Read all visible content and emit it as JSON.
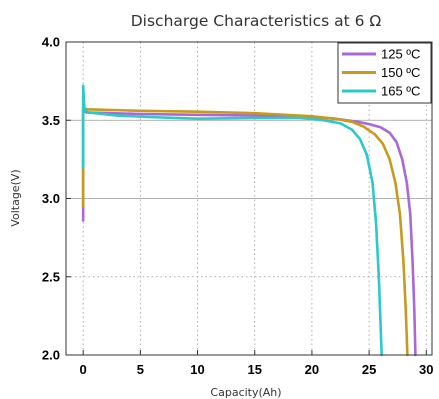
{
  "chart_data": {
    "type": "line",
    "title": "Discharge Characteristics at 6 Ω",
    "xlabel": "Capacity(Ah)",
    "ylabel": "Voltage(V)",
    "xlim": [
      -1.5,
      30.5
    ],
    "ylim": [
      2.0,
      4.0
    ],
    "x_ticks": [
      0,
      5,
      10,
      15,
      20,
      25,
      30
    ],
    "y_ticks": [
      2.0,
      2.5,
      3.0,
      3.5,
      4.0
    ],
    "x_tick_labels": [
      "0",
      "5",
      "10",
      "15",
      "20",
      "25",
      "30"
    ],
    "y_tick_labels": [
      "2.0",
      "2.5",
      "3.0",
      "3.5",
      "4.0"
    ],
    "grid": "dotted",
    "legend_position": "top-right",
    "series": [
      {
        "name": "125 ºC",
        "color": "#a968d6",
        "points": [
          [
            0.0,
            2.86
          ],
          [
            0.0,
            3.56
          ],
          [
            0.3,
            3.55
          ],
          [
            5,
            3.54
          ],
          [
            10,
            3.535
          ],
          [
            15,
            3.53
          ],
          [
            20,
            3.52
          ],
          [
            22,
            3.51
          ],
          [
            24,
            3.49
          ],
          [
            25,
            3.475
          ],
          [
            26,
            3.455
          ],
          [
            26.8,
            3.42
          ],
          [
            27.4,
            3.36
          ],
          [
            27.9,
            3.25
          ],
          [
            28.3,
            3.1
          ],
          [
            28.6,
            2.9
          ],
          [
            28.8,
            2.6
          ],
          [
            28.95,
            2.3
          ],
          [
            29.05,
            2.0
          ]
        ]
      },
      {
        "name": "150 ºC",
        "color": "#c79a1d",
        "points": [
          [
            0.0,
            2.95
          ],
          [
            0.0,
            3.58
          ],
          [
            0.3,
            3.57
          ],
          [
            5,
            3.56
          ],
          [
            10,
            3.555
          ],
          [
            15,
            3.545
          ],
          [
            20,
            3.525
          ],
          [
            22,
            3.51
          ],
          [
            23.5,
            3.49
          ],
          [
            24.5,
            3.46
          ],
          [
            25.5,
            3.41
          ],
          [
            26.2,
            3.35
          ],
          [
            26.8,
            3.25
          ],
          [
            27.3,
            3.1
          ],
          [
            27.7,
            2.9
          ],
          [
            28.0,
            2.6
          ],
          [
            28.2,
            2.3
          ],
          [
            28.35,
            2.0
          ]
        ]
      },
      {
        "name": "165 ºC",
        "color": "#2ec8c8",
        "points": [
          [
            0.0,
            3.2
          ],
          [
            0.0,
            3.72
          ],
          [
            0.1,
            3.58
          ],
          [
            0.4,
            3.55
          ],
          [
            3,
            3.53
          ],
          [
            6,
            3.52
          ],
          [
            10,
            3.51
          ],
          [
            15,
            3.515
          ],
          [
            19,
            3.515
          ],
          [
            21,
            3.5
          ],
          [
            22.5,
            3.48
          ],
          [
            23.5,
            3.44
          ],
          [
            24.2,
            3.38
          ],
          [
            24.8,
            3.28
          ],
          [
            25.3,
            3.1
          ],
          [
            25.6,
            2.85
          ],
          [
            25.85,
            2.5
          ],
          [
            26.0,
            2.2
          ],
          [
            26.1,
            2.0
          ]
        ]
      }
    ]
  }
}
